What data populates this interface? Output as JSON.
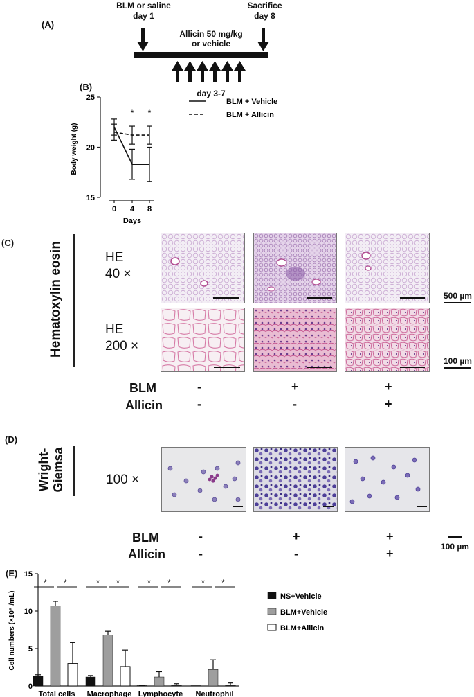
{
  "panel_a": {
    "label": "(A)",
    "bleomycin_label_line1": "BLM or saline",
    "bleomycin_label_line2": "day 1",
    "sacrifice_line1": "Sacrifice",
    "sacrifice_line2": "day 8",
    "allicin_line1": "Allicin 50 mg/kg",
    "allicin_line2": "or vehicle",
    "days_label": "day 3-7"
  },
  "panel_b": {
    "label": "(B)",
    "chart_data": {
      "type": "line",
      "x": [
        0,
        4,
        8
      ],
      "xlabel": "Days",
      "ylabel": "Body weight (g)",
      "yticks": [
        15,
        20,
        25
      ],
      "ylim": [
        15,
        25
      ],
      "xticks": [
        "0",
        "4",
        "8"
      ],
      "series": [
        {
          "name": "BLM + Vehicle",
          "style": "solid",
          "values": [
            22.0,
            18.3,
            18.3
          ],
          "err": [
            0.8,
            1.5,
            1.7
          ]
        },
        {
          "name": "BLM + Allicin",
          "style": "dashed",
          "values": [
            21.5,
            21.2,
            21.2
          ],
          "err": [
            0.8,
            0.9,
            0.9
          ]
        }
      ],
      "significance": [
        "",
        "*",
        "*"
      ]
    }
  },
  "panel_c": {
    "label": "(C)",
    "stain": "Hematoxylin eosin",
    "row1_line1": "HE",
    "row1_line2": "40 ×",
    "row2_line1": "HE",
    "row2_line2": "200 ×",
    "scale_row1": "500 µm",
    "scale_row2": "100 µm",
    "blm_label": "BLM",
    "allicin_label": "Allicin",
    "blm_signs": [
      "-",
      "+",
      "+"
    ],
    "allicin_signs": [
      "-",
      "-",
      "+"
    ]
  },
  "panel_d": {
    "label": "(D)",
    "stain_line1": "Wright-",
    "stain_line2": "Giemsa",
    "mag": "100 ×",
    "scale": "100 µm",
    "blm_label": "BLM",
    "allicin_label": "Allicin",
    "blm_signs": [
      "-",
      "+",
      "+"
    ],
    "allicin_signs": [
      "-",
      "-",
      "+"
    ]
  },
  "panel_e": {
    "label": "(E)",
    "chart_data": {
      "type": "bar",
      "categories": [
        "Total cells",
        "Macrophage",
        "Lymphocyte",
        "Neutrophil"
      ],
      "ylabel": "Cell numbers (×10⁵ /mL)",
      "ylim": [
        0,
        15
      ],
      "yticks": [
        0,
        5,
        10,
        15
      ],
      "series": [
        {
          "name": "NS+Vehicle",
          "color": "#111111",
          "values": [
            1.3,
            1.2,
            0.05,
            0.0
          ],
          "err": [
            0.2,
            0.2,
            0.05,
            0.0
          ]
        },
        {
          "name": "BLM+Vehicle",
          "color": "#9e9e9e",
          "values": [
            10.7,
            6.8,
            1.2,
            2.2
          ],
          "err": [
            0.6,
            0.5,
            0.7,
            1.3
          ]
        },
        {
          "name": "BLM+Allicin",
          "color": "#ffffff",
          "values": [
            3.0,
            2.6,
            0.1,
            0.1
          ],
          "err": [
            2.8,
            2.2,
            0.2,
            0.3
          ]
        }
      ],
      "significance": "*"
    }
  }
}
